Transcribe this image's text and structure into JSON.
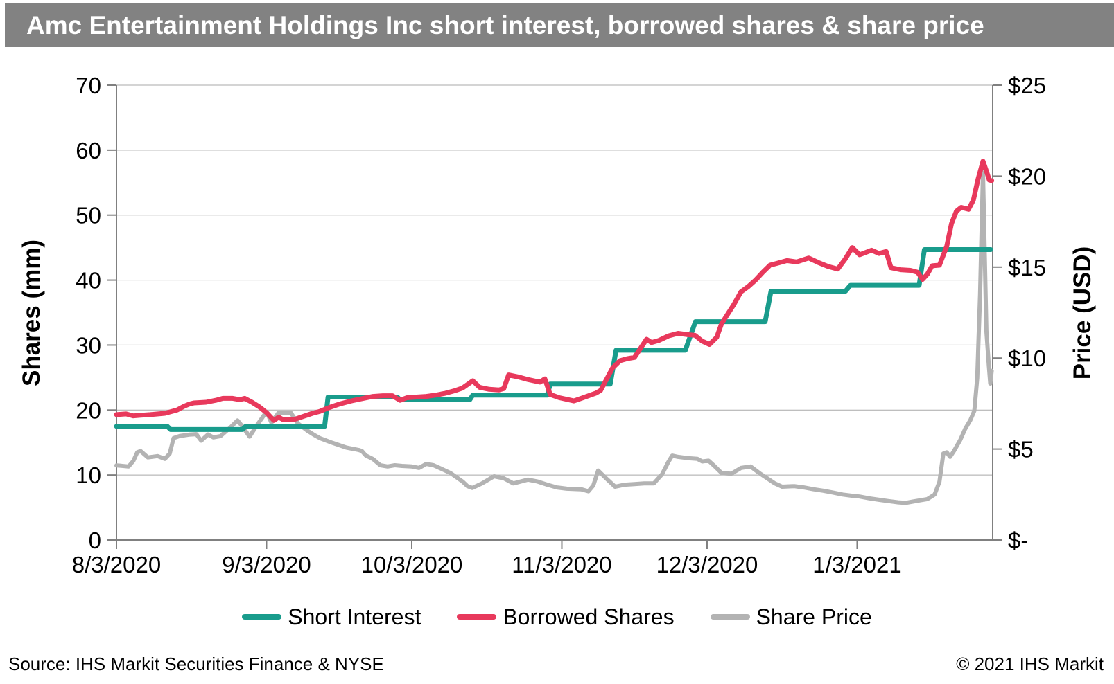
{
  "title": "Amc Entertainment Holdings Inc short interest, borrowed shares & share price",
  "footer": {
    "source": "Source: IHS Markit Securities Finance & NYSE",
    "copyright": "© 2021 IHS Markit"
  },
  "chart_data": {
    "type": "line",
    "title": "Amc Entertainment Holdings Inc short interest, borrowed shares & share price",
    "grid": "horizontal",
    "legend_position": "bottom",
    "style": {
      "grid_color": "#A9A9A9",
      "axis_color": "#808080",
      "tick_label_color": "#000000",
      "title_bar_color": "#828282"
    },
    "x_axis": {
      "unit": "days since 8/3/2020",
      "range": [
        0,
        181
      ],
      "ticks": [
        {
          "day": 0,
          "label": "8/3/2020"
        },
        {
          "day": 31,
          "label": "9/3/2020"
        },
        {
          "day": 61,
          "label": "10/3/2020"
        },
        {
          "day": 92,
          "label": "11/3/2020"
        },
        {
          "day": 122,
          "label": "12/3/2020"
        },
        {
          "day": 153,
          "label": "1/3/2021"
        }
      ]
    },
    "left_axis": {
      "label": "Shares (mm)",
      "range": [
        0,
        70
      ],
      "ticks": [
        {
          "value": 0,
          "label": "0"
        },
        {
          "value": 10,
          "label": "10"
        },
        {
          "value": 20,
          "label": "20"
        },
        {
          "value": 30,
          "label": "30"
        },
        {
          "value": 40,
          "label": "40"
        },
        {
          "value": 50,
          "label": "50"
        },
        {
          "value": 60,
          "label": "60"
        },
        {
          "value": 70,
          "label": "70"
        }
      ]
    },
    "right_axis": {
      "label": "Price (USD)",
      "range": [
        0,
        25
      ],
      "ticks": [
        {
          "value": 0,
          "label": "$-"
        },
        {
          "value": 5,
          "label": "$5"
        },
        {
          "value": 10,
          "label": "$10"
        },
        {
          "value": 15,
          "label": "$15"
        },
        {
          "value": 20,
          "label": "$20"
        },
        {
          "value": 25,
          "label": "$25"
        }
      ]
    },
    "series": [
      {
        "name": "Short Interest",
        "axis": "left",
        "unit": "shares (mm)",
        "color": "#199C8C",
        "points": [
          [
            0,
            17.5
          ],
          [
            10.5,
            17.5
          ],
          [
            11.2,
            17.0
          ],
          [
            26,
            17.0
          ],
          [
            26.7,
            17.5
          ],
          [
            43,
            17.5
          ],
          [
            43.7,
            22.0
          ],
          [
            58,
            22.0
          ],
          [
            58.6,
            21.6
          ],
          [
            73,
            21.6
          ],
          [
            73.6,
            22.3
          ],
          [
            89,
            22.3
          ],
          [
            89.6,
            24.0
          ],
          [
            102,
            24.0
          ],
          [
            103.2,
            29.2
          ],
          [
            117.5,
            29.2
          ],
          [
            119.6,
            33.6
          ],
          [
            134,
            33.6
          ],
          [
            135.2,
            38.3
          ],
          [
            150.6,
            38.3
          ],
          [
            151.6,
            39.2
          ],
          [
            165.8,
            39.2
          ],
          [
            166.9,
            44.7
          ],
          [
            180.6,
            44.7
          ]
        ]
      },
      {
        "name": "Borrowed Shares",
        "axis": "left",
        "unit": "shares (mm)",
        "color": "#E8395C",
        "points": [
          [
            0,
            19.3
          ],
          [
            2,
            19.4
          ],
          [
            3.5,
            19.1
          ],
          [
            5,
            19.2
          ],
          [
            7,
            19.3
          ],
          [
            10,
            19.5
          ],
          [
            12.5,
            20.0
          ],
          [
            14,
            20.6
          ],
          [
            15,
            20.9
          ],
          [
            16,
            21.1
          ],
          [
            18.5,
            21.2
          ],
          [
            20.5,
            21.5
          ],
          [
            22,
            21.8
          ],
          [
            24,
            21.8
          ],
          [
            25.5,
            21.6
          ],
          [
            26.5,
            21.8
          ],
          [
            28,
            21.2
          ],
          [
            29.5,
            20.5
          ],
          [
            31,
            19.6
          ],
          [
            32.5,
            18.4
          ],
          [
            33.5,
            18.9
          ],
          [
            34.5,
            18.5
          ],
          [
            36.5,
            18.5
          ],
          [
            38.5,
            19.0
          ],
          [
            40.5,
            19.5
          ],
          [
            42,
            19.8
          ],
          [
            44,
            20.4
          ],
          [
            46,
            20.9
          ],
          [
            48.5,
            21.4
          ],
          [
            51,
            21.8
          ],
          [
            53,
            22.1
          ],
          [
            55,
            22.2
          ],
          [
            57,
            22.2
          ],
          [
            58.6,
            21.5
          ],
          [
            60,
            21.9
          ],
          [
            62,
            22.0
          ],
          [
            64,
            22.1
          ],
          [
            66,
            22.3
          ],
          [
            68,
            22.6
          ],
          [
            70,
            23.0
          ],
          [
            71.5,
            23.4
          ],
          [
            73.6,
            24.5
          ],
          [
            75,
            23.5
          ],
          [
            77,
            23.2
          ],
          [
            79,
            23.1
          ],
          [
            80,
            23.3
          ],
          [
            81,
            25.4
          ],
          [
            83,
            25.1
          ],
          [
            85,
            24.7
          ],
          [
            87.5,
            24.3
          ],
          [
            88.5,
            24.8
          ],
          [
            89.6,
            22.4
          ],
          [
            91.5,
            21.9
          ],
          [
            94.5,
            21.4
          ],
          [
            96,
            21.8
          ],
          [
            99,
            22.6
          ],
          [
            100,
            23.0
          ],
          [
            102.5,
            26.5
          ],
          [
            104,
            27.6
          ],
          [
            105.5,
            27.9
          ],
          [
            107,
            28.1
          ],
          [
            109.5,
            30.9
          ],
          [
            110.5,
            30.4
          ],
          [
            112,
            30.7
          ],
          [
            114,
            31.4
          ],
          [
            116,
            31.8
          ],
          [
            118,
            31.6
          ],
          [
            119.5,
            31.5
          ],
          [
            121,
            30.6
          ],
          [
            122.5,
            30.1
          ],
          [
            124,
            31.2
          ],
          [
            125,
            33.3
          ],
          [
            127.5,
            36.2
          ],
          [
            129,
            38.2
          ],
          [
            130.5,
            39.0
          ],
          [
            132,
            40.0
          ],
          [
            133.5,
            41.2
          ],
          [
            135,
            42.3
          ],
          [
            136.5,
            42.6
          ],
          [
            138.5,
            43.0
          ],
          [
            140.5,
            42.8
          ],
          [
            143,
            43.4
          ],
          [
            145,
            42.7
          ],
          [
            147,
            42.1
          ],
          [
            149,
            41.7
          ],
          [
            150.5,
            43.2
          ],
          [
            152,
            45.0
          ],
          [
            153.5,
            43.9
          ],
          [
            156,
            44.6
          ],
          [
            157.5,
            44.1
          ],
          [
            159,
            44.4
          ],
          [
            160,
            41.9
          ],
          [
            162,
            41.6
          ],
          [
            164,
            41.5
          ],
          [
            165.5,
            41.2
          ],
          [
            166.5,
            40.1
          ],
          [
            167.5,
            40.9
          ],
          [
            168.5,
            42.2
          ],
          [
            170,
            42.3
          ],
          [
            171.5,
            45.2
          ],
          [
            172.5,
            48.7
          ],
          [
            173.5,
            50.6
          ],
          [
            174.5,
            51.2
          ],
          [
            176,
            50.9
          ],
          [
            177,
            52.3
          ],
          [
            178,
            55.6
          ],
          [
            179,
            58.3
          ],
          [
            179.7,
            56.8
          ],
          [
            180.3,
            55.4
          ],
          [
            180.8,
            55.3
          ]
        ]
      },
      {
        "name": "Share Price",
        "axis": "right",
        "unit": "USD",
        "color": "#B3B3B3",
        "points": [
          [
            0,
            4.1
          ],
          [
            1,
            4.08
          ],
          [
            2.5,
            4.04
          ],
          [
            3.5,
            4.35
          ],
          [
            4.3,
            4.82
          ],
          [
            5,
            4.89
          ],
          [
            6.5,
            4.54
          ],
          [
            8.5,
            4.61
          ],
          [
            10,
            4.46
          ],
          [
            11,
            4.75
          ],
          [
            11.8,
            5.6
          ],
          [
            13,
            5.71
          ],
          [
            15,
            5.79
          ],
          [
            16.5,
            5.82
          ],
          [
            17.5,
            5.46
          ],
          [
            18.9,
            5.8
          ],
          [
            20,
            5.64
          ],
          [
            21.5,
            5.71
          ],
          [
            23.5,
            6.18
          ],
          [
            25,
            6.57
          ],
          [
            26,
            6.25
          ],
          [
            27.5,
            5.68
          ],
          [
            29,
            6.3
          ],
          [
            31,
            7.05
          ],
          [
            32,
            6.45
          ],
          [
            33.5,
            7.0
          ],
          [
            36,
            7.0
          ],
          [
            37.5,
            6.4
          ],
          [
            39.5,
            6.0
          ],
          [
            41,
            5.75
          ],
          [
            42,
            5.6
          ],
          [
            44.5,
            5.35
          ],
          [
            47.5,
            5.08
          ],
          [
            50,
            4.95
          ],
          [
            50.7,
            4.89
          ],
          [
            51.5,
            4.65
          ],
          [
            53,
            4.45
          ],
          [
            54.5,
            4.11
          ],
          [
            56,
            4.04
          ],
          [
            57.5,
            4.11
          ],
          [
            59,
            4.07
          ],
          [
            61,
            4.04
          ],
          [
            62.5,
            3.96
          ],
          [
            64,
            4.18
          ],
          [
            65.5,
            4.11
          ],
          [
            67,
            3.93
          ],
          [
            69,
            3.68
          ],
          [
            71.5,
            3.21
          ],
          [
            72.5,
            2.96
          ],
          [
            73.5,
            2.86
          ],
          [
            75.5,
            3.11
          ],
          [
            78,
            3.5
          ],
          [
            80,
            3.39
          ],
          [
            82,
            3.11
          ],
          [
            85,
            3.32
          ],
          [
            87,
            3.21
          ],
          [
            89,
            3.04
          ],
          [
            91,
            2.89
          ],
          [
            93,
            2.82
          ],
          [
            96,
            2.79
          ],
          [
            97.5,
            2.68
          ],
          [
            98.5,
            3.0
          ],
          [
            99.5,
            3.82
          ],
          [
            101,
            3.43
          ],
          [
            103,
            2.93
          ],
          [
            105,
            3.04
          ],
          [
            107,
            3.07
          ],
          [
            109,
            3.11
          ],
          [
            111,
            3.11
          ],
          [
            112.7,
            3.61
          ],
          [
            114,
            4.29
          ],
          [
            114.8,
            4.64
          ],
          [
            116,
            4.57
          ],
          [
            118,
            4.5
          ],
          [
            120,
            4.46
          ],
          [
            121,
            4.32
          ],
          [
            122.3,
            4.36
          ],
          [
            123.5,
            4.07
          ],
          [
            125,
            3.68
          ],
          [
            127,
            3.64
          ],
          [
            129,
            3.96
          ],
          [
            131,
            4.04
          ],
          [
            133,
            3.64
          ],
          [
            136,
            3.11
          ],
          [
            137.5,
            2.93
          ],
          [
            140,
            2.96
          ],
          [
            142,
            2.89
          ],
          [
            144,
            2.79
          ],
          [
            146,
            2.71
          ],
          [
            148,
            2.61
          ],
          [
            150,
            2.5
          ],
          [
            152,
            2.43
          ],
          [
            153.5,
            2.39
          ],
          [
            155.5,
            2.29
          ],
          [
            157.5,
            2.21
          ],
          [
            159.5,
            2.14
          ],
          [
            161.5,
            2.07
          ],
          [
            163,
            2.04
          ],
          [
            164.5,
            2.11
          ],
          [
            166,
            2.18
          ],
          [
            167.5,
            2.25
          ],
          [
            169,
            2.5
          ],
          [
            170,
            3.2
          ],
          [
            170.8,
            4.75
          ],
          [
            171.5,
            4.82
          ],
          [
            172.2,
            4.57
          ],
          [
            173,
            4.89
          ],
          [
            174.3,
            5.5
          ],
          [
            175.3,
            6.1
          ],
          [
            176.4,
            6.6
          ],
          [
            177.2,
            7.1
          ],
          [
            177.8,
            8.9
          ],
          [
            178.4,
            13.5
          ],
          [
            179,
            20.2
          ],
          [
            179.7,
            11.5
          ],
          [
            180.2,
            9.6
          ],
          [
            180.5,
            8.6
          ],
          [
            180.8,
            9.3
          ]
        ]
      }
    ]
  }
}
